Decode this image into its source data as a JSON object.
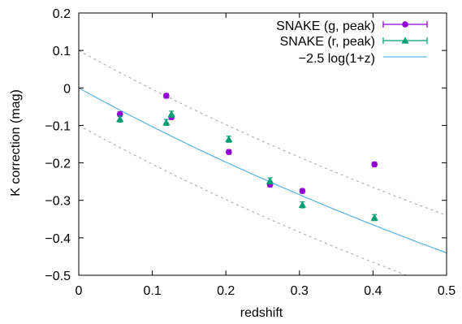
{
  "chart_data": {
    "type": "scatter",
    "xlabel": "redshift",
    "ylabel": "K correction (mag)",
    "xlim": [
      0,
      0.5
    ],
    "ylim": [
      -0.5,
      0.2
    ],
    "xticks": [
      "0",
      "0.1",
      "0.2",
      "0.3",
      "0.4",
      "0.5"
    ],
    "yticks": [
      "0.2",
      "0.1",
      "0",
      "−0.1",
      "−0.2",
      "−0.3",
      "−0.4",
      "−0.5"
    ],
    "grid": false,
    "legend_position": "top-right",
    "series": [
      {
        "name": "SNAKE (g, peak)",
        "color": "#9400d3",
        "marker": "circle",
        "x": [
          0.056,
          0.119,
          0.126,
          0.204,
          0.26,
          0.304,
          0.402
        ],
        "y": [
          -0.07,
          -0.021,
          -0.078,
          -0.171,
          -0.258,
          -0.275,
          -0.204
        ],
        "yerr": [
          0.006,
          0.006,
          0.006,
          0.006,
          0.006,
          0.006,
          0.006
        ]
      },
      {
        "name": "SNAKE (r, peak)",
        "color": "#009e73",
        "marker": "triangle",
        "x": [
          0.056,
          0.119,
          0.126,
          0.204,
          0.26,
          0.304,
          0.402
        ],
        "y": [
          -0.083,
          -0.092,
          -0.07,
          -0.137,
          -0.248,
          -0.312,
          -0.346
        ],
        "yerr": [
          0.008,
          0.008,
          0.008,
          0.008,
          0.008,
          0.008,
          0.008
        ]
      }
    ],
    "curve": {
      "name": "−2.5 log(1+z)",
      "color": "#56b4e9",
      "formula": "-2.5*log10(1+z)"
    },
    "bounds": {
      "color": "#aaaaaa",
      "offsets": [
        0.1,
        -0.1
      ]
    }
  }
}
